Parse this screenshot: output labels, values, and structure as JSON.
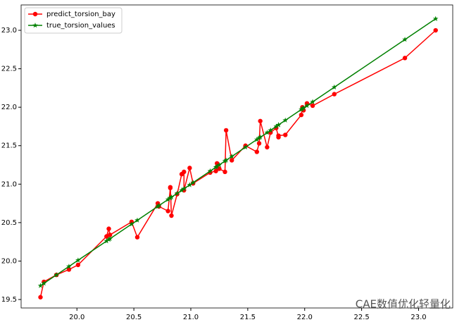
{
  "chart_data": {
    "type": "line",
    "x": [
      19.68,
      19.71,
      19.82,
      19.93,
      20.01,
      20.26,
      20.28,
      20.29,
      20.48,
      20.53,
      20.71,
      20.72,
      20.8,
      20.82,
      20.82,
      20.83,
      20.88,
      20.92,
      20.94,
      20.94,
      20.99,
      21.02,
      21.17,
      21.22,
      21.23,
      21.25,
      21.3,
      21.31,
      21.36,
      21.48,
      21.58,
      21.6,
      21.61,
      21.67,
      21.7,
      21.75,
      21.77,
      21.77,
      21.83,
      21.97,
      21.98,
      21.99,
      22.02,
      22.07,
      22.26,
      22.88,
      23.15
    ],
    "series": [
      {
        "name": "predict_torsion_bay",
        "color": "#ff0000",
        "marker": "circle",
        "values": [
          19.53,
          19.73,
          19.82,
          19.89,
          19.95,
          20.32,
          20.42,
          20.34,
          20.51,
          20.31,
          20.75,
          20.71,
          20.65,
          20.95,
          20.96,
          20.59,
          20.87,
          21.13,
          21.16,
          20.92,
          21.21,
          21.01,
          21.15,
          21.17,
          21.27,
          21.2,
          21.16,
          21.7,
          21.31,
          21.5,
          21.42,
          21.53,
          21.82,
          21.48,
          21.67,
          21.73,
          21.61,
          21.63,
          21.64,
          21.9,
          22.0,
          21.96,
          22.05,
          22.02,
          22.17,
          22.64,
          23.0
        ]
      },
      {
        "name": "true_torsion_values",
        "color": "#008000",
        "marker": "star",
        "values": [
          19.68,
          19.71,
          19.82,
          19.93,
          20.01,
          20.26,
          20.28,
          20.29,
          20.48,
          20.53,
          20.71,
          20.72,
          20.8,
          20.82,
          20.82,
          20.83,
          20.88,
          20.92,
          20.94,
          20.94,
          20.99,
          21.02,
          21.17,
          21.22,
          21.23,
          21.25,
          21.3,
          21.31,
          21.36,
          21.48,
          21.58,
          21.6,
          21.61,
          21.67,
          21.7,
          21.75,
          21.77,
          21.77,
          21.83,
          21.97,
          21.98,
          21.99,
          22.02,
          22.07,
          22.26,
          22.88,
          23.15
        ]
      }
    ],
    "xlim": [
      19.51,
      23.3
    ],
    "ylim": [
      19.39,
      23.33
    ],
    "xticks": [
      {
        "value": 20,
        "label": "20.0"
      },
      20.5,
      {
        "value": 21,
        "label": "21.0"
      },
      21.5,
      {
        "value": 22,
        "label": "22.0"
      },
      22.5,
      {
        "value": 23,
        "label": "23.0"
      }
    ],
    "yticks": [
      19.5,
      {
        "value": 20,
        "label": "20.0"
      },
      20.5,
      {
        "value": 21,
        "label": "21.0"
      },
      21.5,
      {
        "value": 22,
        "label": "22.0"
      },
      22.5,
      {
        "value": 23,
        "label": "23.0"
      }
    ],
    "legend": "upper left",
    "annotation": "CAE数值优化轻量化"
  }
}
